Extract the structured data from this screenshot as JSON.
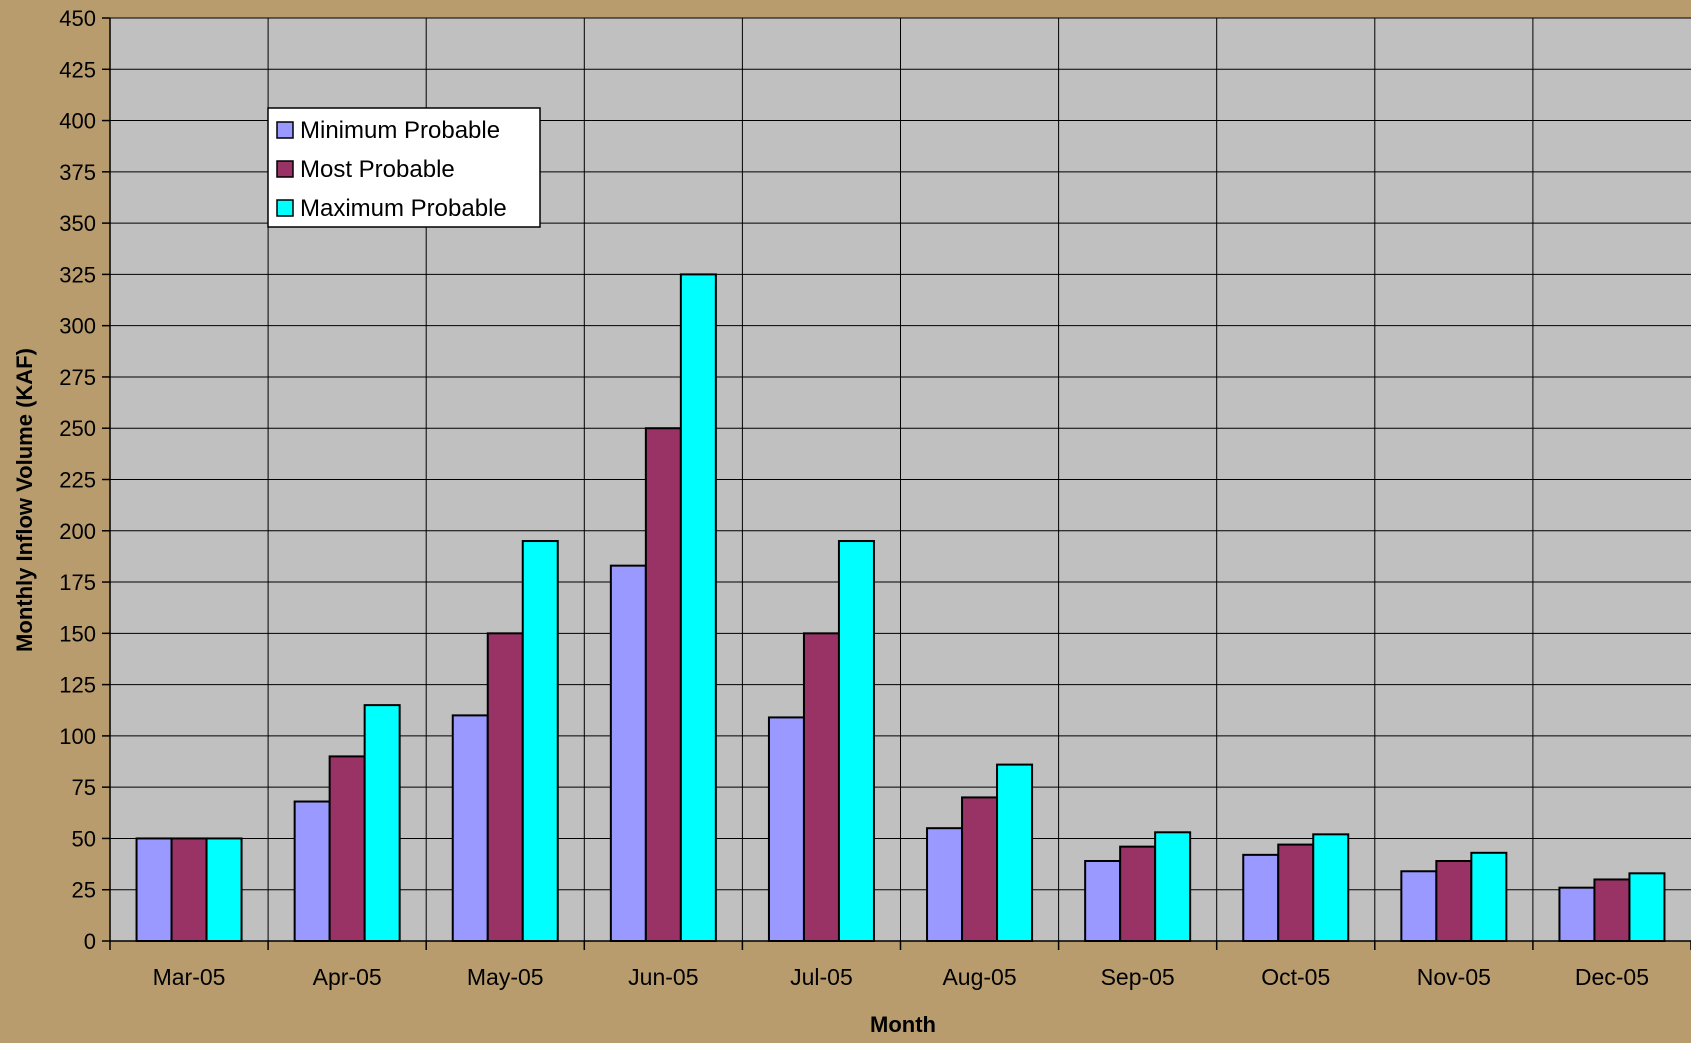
{
  "chart_data": {
    "type": "bar",
    "title": "",
    "xlabel": "Month",
    "ylabel": "Monthly Inflow Volume (KAF)",
    "ylim": [
      0,
      450
    ],
    "y_tick_step": 25,
    "grid": true,
    "legend_position": "top-left (inside plot)",
    "categories": [
      "Mar-05",
      "Apr-05",
      "May-05",
      "Jun-05",
      "Jul-05",
      "Aug-05",
      "Sep-05",
      "Oct-05",
      "Nov-05",
      "Dec-05"
    ],
    "series": [
      {
        "name": "Minimum Probable",
        "color": "#9999ff",
        "values": [
          50,
          68,
          110,
          183,
          109,
          55,
          39,
          42,
          34,
          26
        ]
      },
      {
        "name": "Most Probable",
        "color": "#993366",
        "values": [
          50,
          90,
          150,
          250,
          150,
          70,
          46,
          47,
          39,
          30
        ]
      },
      {
        "name": "Maximum Probable",
        "color": "#00ffff",
        "values": [
          50,
          115,
          195,
          325,
          195,
          86,
          53,
          52,
          43,
          33
        ]
      }
    ],
    "colors": {
      "page_background": "#b89c6e",
      "plot_background": "#c0c0c0",
      "gridline": "#000000"
    }
  }
}
